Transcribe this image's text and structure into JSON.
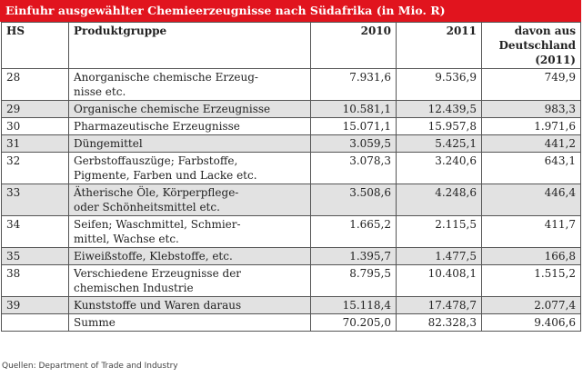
{
  "title": "Einfuhr ausgewählter Chemieerzeugnisse nach Südafrika (in Mio. R)",
  "columns": {
    "hs": "HS",
    "group": "Produktgruppe",
    "y2010": "2010",
    "y2011": "2011",
    "de_line1": "davon aus",
    "de_line2": "Deutschland",
    "de_line3": "(2011)"
  },
  "rows": [
    {
      "hs": "28",
      "group_lines": [
        "Anorganische chemische Erzeug-",
        "nisse etc."
      ],
      "y2010": "7.931,6",
      "y2011": "9.536,9",
      "de": "749,9"
    },
    {
      "hs": "29",
      "group_lines": [
        "Organische chemische Erzeugnisse"
      ],
      "y2010": "10.581,1",
      "y2011": "12.439,5",
      "de": "983,3"
    },
    {
      "hs": "30",
      "group_lines": [
        "Pharmazeutische Erzeugnisse"
      ],
      "y2010": "15.071,1",
      "y2011": "15.957,8",
      "de": "1.971,6"
    },
    {
      "hs": "31",
      "group_lines": [
        "Düngemittel"
      ],
      "y2010": "3.059,5",
      "y2011": "5.425,1",
      "de": "441,2"
    },
    {
      "hs": "32",
      "group_lines": [
        "Gerbstoffauszüge; Farbstoffe,",
        "Pigmente, Farben und Lacke etc."
      ],
      "y2010": "3.078,3",
      "y2011": "3.240,6",
      "de": "643,1"
    },
    {
      "hs": "33",
      "group_lines": [
        "Ätherische Öle, Körperpflege-",
        "oder Schönheitsmittel etc."
      ],
      "y2010": "3.508,6",
      "y2011": "4.248,6",
      "de": "446,4"
    },
    {
      "hs": "34",
      "group_lines": [
        "Seifen; Waschmittel, Schmier-",
        "mittel, Wachse etc."
      ],
      "y2010": "1.665,2",
      "y2011": "2.115,5",
      "de": "411,7"
    },
    {
      "hs": "35",
      "group_lines": [
        "Eiweißstoffe, Klebstoffe, etc."
      ],
      "y2010": "1.395,7",
      "y2011": "1.477,5",
      "de": "166,8"
    },
    {
      "hs": "38",
      "group_lines": [
        "Verschiedene Erzeugnisse der",
        "chemischen Industrie"
      ],
      "y2010": "8.795,5",
      "y2011": "10.408,1",
      "de": "1.515,2"
    },
    {
      "hs": "39",
      "group_lines": [
        "Kunststoffe und Waren daraus"
      ],
      "y2010": "15.118,4",
      "y2011": "17.478,7",
      "de": "2.077,4"
    }
  ],
  "sum": {
    "label": "Summe",
    "y2010": "70.205,0",
    "y2011": "82.328,3",
    "de": "9.406,6"
  },
  "source": "Quellen: Department of Trade and Industry"
}
